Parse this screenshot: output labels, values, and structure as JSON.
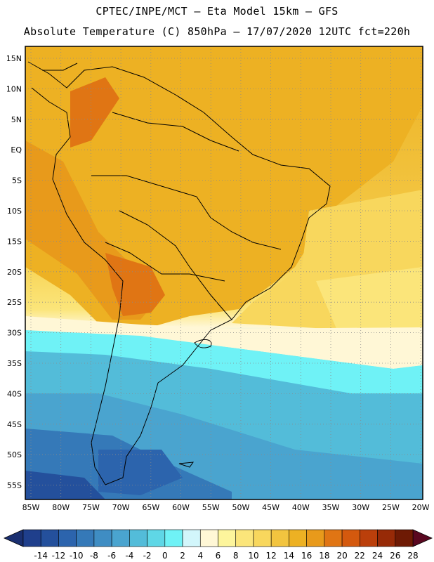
{
  "title": {
    "line1": "CPTEC/INPE/MCT –  Eta Model 15km – GFS",
    "line2": "Absolute Temperature (C) 850hPa – 17/07/2020 12UTC fct=220h"
  },
  "map": {
    "lat_labels": [
      "15N",
      "10N",
      "5N",
      "EQ",
      "5S",
      "10S",
      "15S",
      "20S",
      "25S",
      "30S",
      "35S",
      "40S",
      "45S",
      "50S",
      "55S"
    ],
    "lon_labels": [
      "85W",
      "80W",
      "75W",
      "70W",
      "65W",
      "60W",
      "55W",
      "50W",
      "45W",
      "40W",
      "35W",
      "30W",
      "25W",
      "20W"
    ]
  },
  "colorbar": {
    "labels": [
      "-14",
      "-12",
      "-10",
      "-8",
      "-6",
      "-4",
      "-2",
      "0",
      "2",
      "4",
      "6",
      "8",
      "10",
      "12",
      "14",
      "16",
      "18",
      "20",
      "22",
      "24",
      "26",
      "28"
    ],
    "colors": [
      "#1f3f8c",
      "#24509c",
      "#2c64ad",
      "#3579b8",
      "#3f8dc3",
      "#4aa4cf",
      "#53bcd9",
      "#5fd7e6",
      "#6ff2f6",
      "#d2f6fb",
      "#fff7d6",
      "#fdf59c",
      "#fbe57a",
      "#f8d75d",
      "#f2c43f",
      "#edb123",
      "#e89a1b",
      "#e07514",
      "#d4590e",
      "#bb3f0b",
      "#972a07",
      "#6e1a04"
    ],
    "low_arrow_color": "#1a2f70",
    "high_arrow_color": "#5a0820"
  }
}
